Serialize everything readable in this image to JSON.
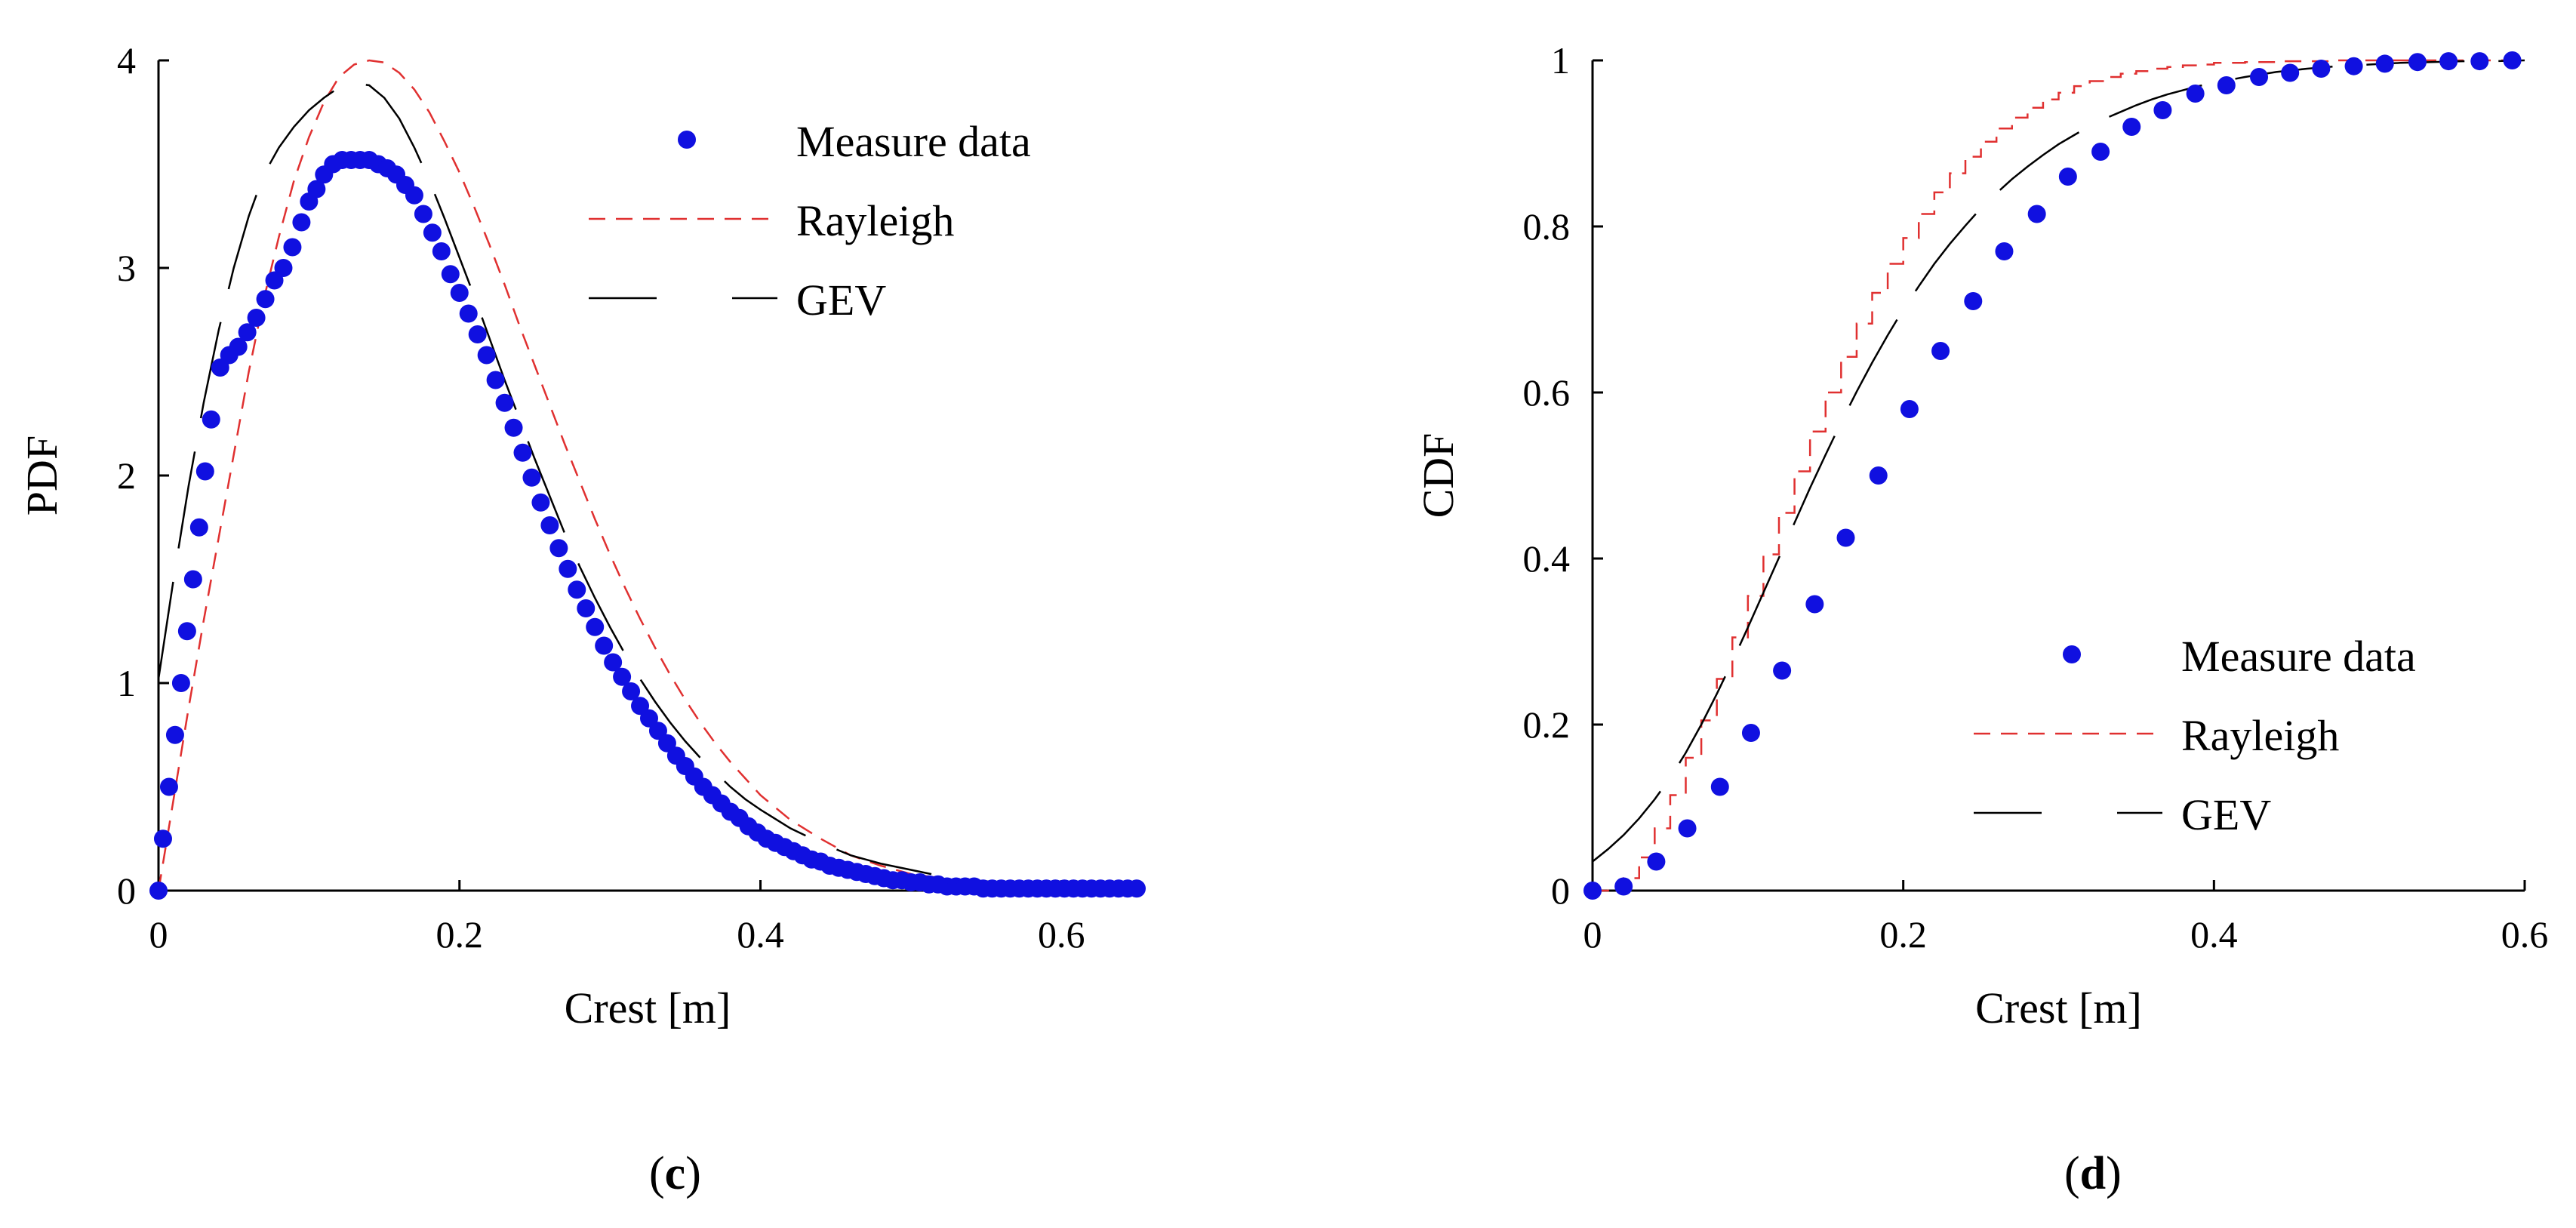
{
  "chart_data": [
    {
      "type": "scatter",
      "panel": {
        "open": "(",
        "letter": "c",
        "close": ")"
      },
      "xlabel": "Crest [m]",
      "ylabel": "PDF",
      "xlim": [
        0,
        0.65
      ],
      "ylim": [
        0,
        4
      ],
      "xticks": [
        0,
        0.2,
        0.4,
        0.6
      ],
      "xtick_labels": [
        "0",
        "0.2",
        "0.4",
        "0.6"
      ],
      "yticks": [
        0,
        1,
        2,
        3,
        4
      ],
      "ytick_labels": [
        "0",
        "1",
        "2",
        "3",
        "4"
      ],
      "legend": {
        "placement": "top-right",
        "entries": [
          "Measure data",
          "Rayleigh",
          "GEV"
        ]
      },
      "series": [
        {
          "name": "Measure data",
          "style": "dots",
          "color": "#1010e0",
          "x": [
            0,
            0.003,
            0.007,
            0.011,
            0.015,
            0.019,
            0.023,
            0.027,
            0.031,
            0.035,
            0.041,
            0.047,
            0.053,
            0.059,
            0.065,
            0.071,
            0.077,
            0.083,
            0.089,
            0.095,
            0.1,
            0.105,
            0.11,
            0.116,
            0.122,
            0.128,
            0.134,
            0.14,
            0.146,
            0.152,
            0.158,
            0.164,
            0.17,
            0.176,
            0.182,
            0.188,
            0.194,
            0.2,
            0.206,
            0.212,
            0.218,
            0.224,
            0.23,
            0.236,
            0.242,
            0.248,
            0.254,
            0.26,
            0.266,
            0.272,
            0.278,
            0.284,
            0.29,
            0.296,
            0.302,
            0.308,
            0.314,
            0.32,
            0.326,
            0.332,
            0.338,
            0.344,
            0.35,
            0.356,
            0.362,
            0.368,
            0.374,
            0.38,
            0.386,
            0.392,
            0.398,
            0.404,
            0.41,
            0.416,
            0.422,
            0.428,
            0.434,
            0.44,
            0.446,
            0.452,
            0.458,
            0.464,
            0.47,
            0.476,
            0.482,
            0.488,
            0.494,
            0.5,
            0.506,
            0.512,
            0.518,
            0.524,
            0.53,
            0.536,
            0.542,
            0.548,
            0.554,
            0.56,
            0.566,
            0.572,
            0.578,
            0.584,
            0.59,
            0.596,
            0.602,
            0.608,
            0.614,
            0.62,
            0.626,
            0.632,
            0.638,
            0.644,
            0.65
          ],
          "y": [
            0,
            0.25,
            0.5,
            0.75,
            1.0,
            1.25,
            1.5,
            1.75,
            2.02,
            2.27,
            2.52,
            2.58,
            2.62,
            2.69,
            2.76,
            2.85,
            2.94,
            3.0,
            3.1,
            3.22,
            3.32,
            3.38,
            3.45,
            3.5,
            3.52,
            3.52,
            3.52,
            3.52,
            3.5,
            3.48,
            3.45,
            3.4,
            3.35,
            3.26,
            3.17,
            3.08,
            2.97,
            2.88,
            2.78,
            2.68,
            2.58,
            2.46,
            2.35,
            2.23,
            2.11,
            1.99,
            1.87,
            1.76,
            1.65,
            1.55,
            1.45,
            1.36,
            1.27,
            1.18,
            1.1,
            1.03,
            0.96,
            0.89,
            0.83,
            0.77,
            0.71,
            0.65,
            0.6,
            0.55,
            0.5,
            0.46,
            0.42,
            0.38,
            0.35,
            0.31,
            0.28,
            0.25,
            0.23,
            0.21,
            0.19,
            0.17,
            0.15,
            0.14,
            0.12,
            0.11,
            0.1,
            0.09,
            0.08,
            0.07,
            0.06,
            0.05,
            0.05,
            0.04,
            0.04,
            0.03,
            0.03,
            0.02,
            0.02,
            0.02,
            0.02,
            0.01,
            0.01,
            0.01,
            0.01,
            0.01,
            0.01,
            0.01,
            0.01,
            0.01,
            0.01,
            0.01,
            0.01,
            0.01,
            0.01,
            0.01,
            0.01,
            0.01,
            0.01
          ]
        },
        {
          "name": "Rayleigh",
          "style": "dashed",
          "color": "#e03030",
          "x": [
            0,
            0.01,
            0.02,
            0.03,
            0.04,
            0.05,
            0.06,
            0.07,
            0.08,
            0.09,
            0.1,
            0.11,
            0.12,
            0.13,
            0.14,
            0.15,
            0.16,
            0.17,
            0.18,
            0.19,
            0.2,
            0.21,
            0.22,
            0.23,
            0.24,
            0.25,
            0.26,
            0.27,
            0.28,
            0.29,
            0.3,
            0.31,
            0.32,
            0.33,
            0.34,
            0.35,
            0.36,
            0.37,
            0.38,
            0.39,
            0.4,
            0.42,
            0.44,
            0.46,
            0.48,
            0.5,
            0.52,
            0.54,
            0.56,
            0.58,
            0.6,
            0.62,
            0.64
          ],
          "y": [
            0,
            0.44,
            0.88,
            1.3,
            1.7,
            2.1,
            2.5,
            2.85,
            3.15,
            3.42,
            3.63,
            3.8,
            3.92,
            3.98,
            4.0,
            3.99,
            3.94,
            3.86,
            3.75,
            3.61,
            3.46,
            3.29,
            3.11,
            2.92,
            2.72,
            2.53,
            2.34,
            2.15,
            1.97,
            1.79,
            1.62,
            1.46,
            1.31,
            1.17,
            1.04,
            0.92,
            0.81,
            0.71,
            0.62,
            0.54,
            0.46,
            0.34,
            0.25,
            0.17,
            0.12,
            0.08,
            0.06,
            0.04,
            0.03,
            0.02,
            0.01,
            0.01,
            0.0
          ]
        },
        {
          "name": "GEV",
          "style": "long-dash",
          "color": "#000000",
          "x": [
            0,
            0.01,
            0.02,
            0.03,
            0.04,
            0.05,
            0.06,
            0.07,
            0.08,
            0.09,
            0.1,
            0.11,
            0.12,
            0.13,
            0.14,
            0.15,
            0.16,
            0.17,
            0.18,
            0.19,
            0.2,
            0.21,
            0.22,
            0.23,
            0.24,
            0.25,
            0.26,
            0.27,
            0.28,
            0.29,
            0.3,
            0.31,
            0.32,
            0.33,
            0.34,
            0.35,
            0.36,
            0.37,
            0.38,
            0.39,
            0.4,
            0.42,
            0.44,
            0.46,
            0.48,
            0.5,
            0.52,
            0.54,
            0.56,
            0.58,
            0.6,
            0.62,
            0.64
          ],
          "y": [
            1.02,
            1.5,
            1.95,
            2.35,
            2.7,
            3.0,
            3.25,
            3.45,
            3.58,
            3.68,
            3.76,
            3.82,
            3.87,
            3.89,
            3.88,
            3.82,
            3.72,
            3.58,
            3.42,
            3.24,
            3.05,
            2.86,
            2.66,
            2.46,
            2.27,
            2.08,
            1.9,
            1.72,
            1.56,
            1.41,
            1.27,
            1.14,
            1.02,
            0.91,
            0.81,
            0.72,
            0.64,
            0.57,
            0.5,
            0.44,
            0.39,
            0.3,
            0.23,
            0.17,
            0.13,
            0.1,
            0.07,
            0.05,
            0.04,
            0.03,
            0.02,
            0.01,
            0.01
          ]
        }
      ]
    },
    {
      "type": "scatter",
      "panel": {
        "open": "(",
        "letter": "d",
        "close": ")"
      },
      "xlabel": "Crest [m]",
      "ylabel": "CDF",
      "xlim": [
        0,
        0.6
      ],
      "ylim": [
        0,
        1
      ],
      "xticks": [
        0,
        0.2,
        0.4,
        0.6
      ],
      "xtick_labels": [
        "0",
        "0.2",
        "0.4",
        "0.6"
      ],
      "yticks": [
        0,
        0.2,
        0.4,
        0.6,
        0.8,
        1
      ],
      "ytick_labels": [
        "0",
        "0.2",
        "0.4",
        "0.6",
        "0.8",
        "1"
      ],
      "legend": {
        "placement": "bottom-right",
        "entries": [
          "Measure data",
          "Rayleigh",
          "GEV"
        ]
      },
      "series": [
        {
          "name": "Measure data",
          "style": "dots",
          "color": "#1010e0",
          "x": [
            0,
            0.02,
            0.041,
            0.061,
            0.082,
            0.102,
            0.122,
            0.143,
            0.163,
            0.184,
            0.204,
            0.224,
            0.245,
            0.265,
            0.286,
            0.306,
            0.327,
            0.347,
            0.367,
            0.388,
            0.408,
            0.429,
            0.449,
            0.469,
            0.49,
            0.51,
            0.531,
            0.551,
            0.571,
            0.592
          ],
          "y": [
            0,
            0.005,
            0.035,
            0.075,
            0.125,
            0.19,
            0.265,
            0.345,
            0.425,
            0.5,
            0.58,
            0.65,
            0.71,
            0.77,
            0.815,
            0.86,
            0.89,
            0.92,
            0.94,
            0.96,
            0.97,
            0.98,
            0.985,
            0.99,
            0.993,
            0.996,
            0.998,
            0.999,
            0.999,
            1.0
          ]
        },
        {
          "name": "Rayleigh",
          "style": "dashed-step",
          "color": "#e03030",
          "x": [
            0,
            0.01,
            0.02,
            0.03,
            0.04,
            0.05,
            0.06,
            0.07,
            0.08,
            0.09,
            0.1,
            0.11,
            0.12,
            0.13,
            0.14,
            0.15,
            0.16,
            0.17,
            0.18,
            0.19,
            0.2,
            0.21,
            0.22,
            0.23,
            0.24,
            0.25,
            0.26,
            0.27,
            0.28,
            0.29,
            0.3,
            0.31,
            0.32,
            0.33,
            0.34,
            0.35,
            0.36,
            0.37,
            0.38,
            0.39,
            0.4,
            0.42,
            0.44,
            0.46,
            0.48,
            0.5,
            0.52,
            0.54,
            0.56,
            0.58,
            0.6
          ],
          "y": [
            0,
            0.003,
            0.015,
            0.04,
            0.075,
            0.115,
            0.16,
            0.205,
            0.255,
            0.305,
            0.355,
            0.405,
            0.455,
            0.505,
            0.553,
            0.6,
            0.643,
            0.683,
            0.72,
            0.755,
            0.786,
            0.815,
            0.841,
            0.864,
            0.884,
            0.902,
            0.918,
            0.931,
            0.943,
            0.953,
            0.961,
            0.969,
            0.975,
            0.98,
            0.984,
            0.987,
            0.99,
            0.992,
            0.994,
            0.995,
            0.997,
            0.998,
            0.999,
            0.999,
            1.0,
            1.0,
            1.0,
            1.0,
            1.0,
            1.0,
            1.0
          ]
        },
        {
          "name": "GEV",
          "style": "long-dash",
          "color": "#000000",
          "x": [
            0,
            0.01,
            0.02,
            0.03,
            0.04,
            0.05,
            0.06,
            0.07,
            0.08,
            0.09,
            0.1,
            0.11,
            0.12,
            0.13,
            0.14,
            0.15,
            0.16,
            0.17,
            0.18,
            0.19,
            0.2,
            0.21,
            0.22,
            0.23,
            0.24,
            0.25,
            0.26,
            0.27,
            0.28,
            0.29,
            0.3,
            0.31,
            0.32,
            0.33,
            0.34,
            0.35,
            0.36,
            0.37,
            0.38,
            0.39,
            0.4,
            0.42,
            0.44,
            0.46,
            0.48,
            0.5,
            0.52,
            0.54,
            0.56,
            0.58,
            0.6
          ],
          "y": [
            0.035,
            0.05,
            0.067,
            0.087,
            0.11,
            0.136,
            0.166,
            0.2,
            0.237,
            0.276,
            0.317,
            0.359,
            0.401,
            0.443,
            0.485,
            0.525,
            0.564,
            0.601,
            0.636,
            0.669,
            0.7,
            0.728,
            0.755,
            0.779,
            0.801,
            0.822,
            0.84,
            0.857,
            0.872,
            0.886,
            0.899,
            0.91,
            0.921,
            0.93,
            0.938,
            0.946,
            0.953,
            0.959,
            0.964,
            0.969,
            0.973,
            0.98,
            0.986,
            0.99,
            0.993,
            0.995,
            0.997,
            0.998,
            0.999,
            0.999,
            1.0
          ]
        }
      ]
    }
  ]
}
